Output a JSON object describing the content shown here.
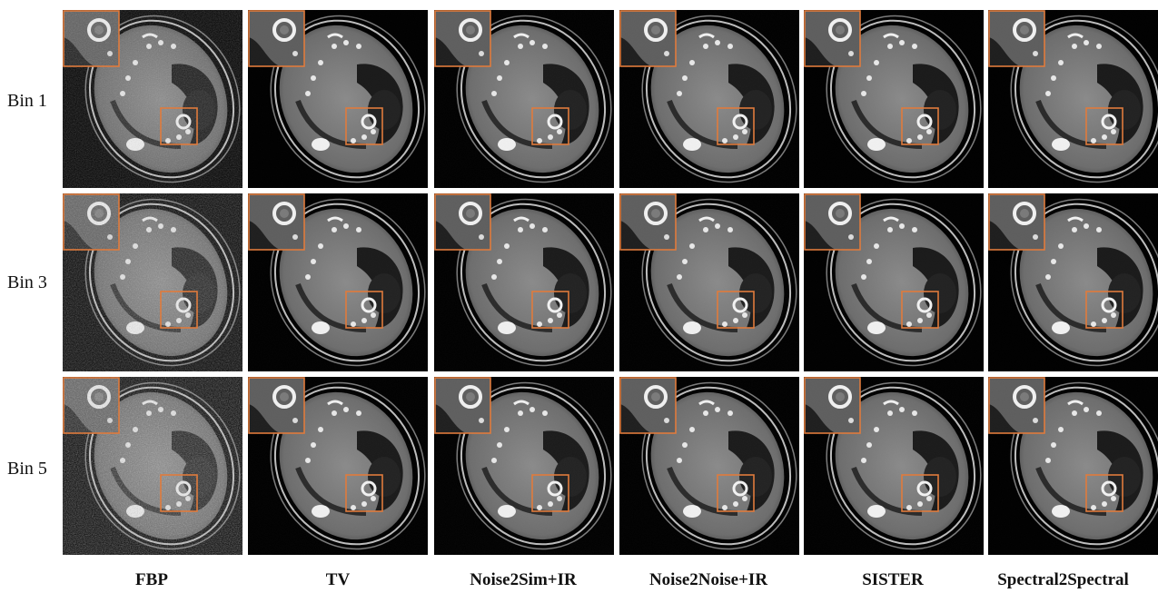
{
  "figure": {
    "rows": [
      "Bin 1",
      "Bin 3",
      "Bin 5"
    ],
    "columns": [
      "FBP",
      "TV",
      "Noise2Sim+IR",
      "Noise2Noise+IR",
      "SISTER",
      "Spectral2Spectral"
    ]
  },
  "colors": {
    "roi_box": "#e07b3c",
    "background": "#000000"
  },
  "grid": [
    {
      "row": "Bin 1",
      "noise": [
        0.55,
        0.04,
        0.06,
        0.05,
        0.03,
        0.03
      ]
    },
    {
      "row": "Bin 3",
      "noise": [
        0.8,
        0.05,
        0.06,
        0.05,
        0.04,
        0.03
      ]
    },
    {
      "row": "Bin 5",
      "noise": [
        0.95,
        0.06,
        0.07,
        0.06,
        0.05,
        0.04
      ]
    }
  ]
}
